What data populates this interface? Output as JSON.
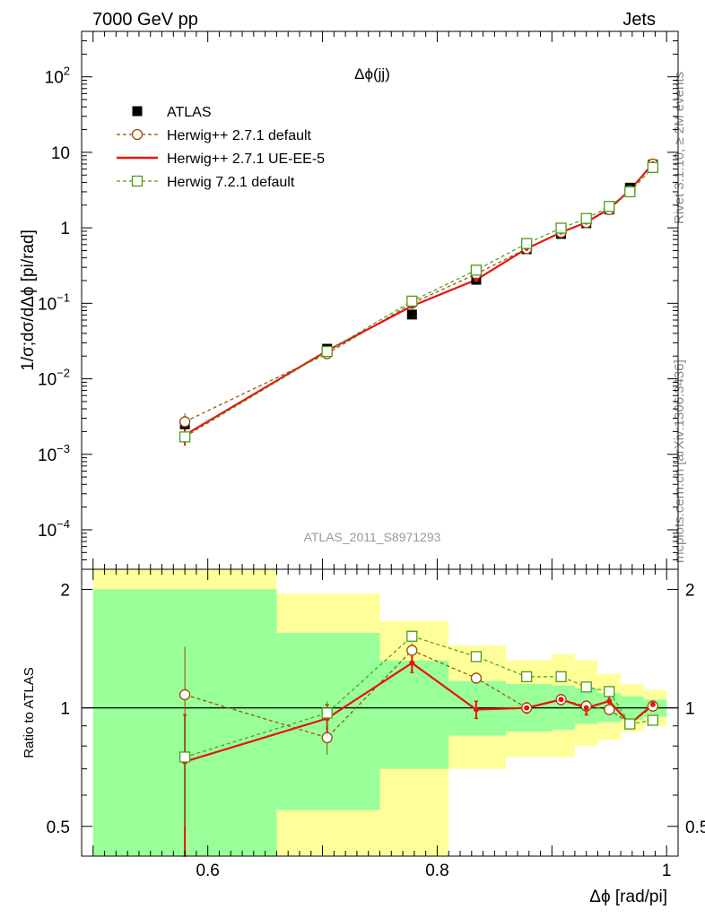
{
  "header": {
    "left": "7000 GeV pp",
    "right": "Jets"
  },
  "side_labels": {
    "rivet": "Rivet 3.1.10, ≥ 2M events",
    "mcplots": "mcplots.cern.ch [arXiv:1306.3436]"
  },
  "chart_data": [
    {
      "type": "line",
      "title": "Δϕ(jj)",
      "ylabel": "1/σ;dσ/dΔϕ [pi/rad]",
      "xlabel": "",
      "log_y": true,
      "ylim": [
        3e-05,
        400
      ],
      "xlim": [
        0.49,
        1.01
      ],
      "y_ticks": [
        {
          "value": 0.0001,
          "base": "10",
          "exp": "−4"
        },
        {
          "value": 0.001,
          "base": "10",
          "exp": "−3"
        },
        {
          "value": 0.01,
          "base": "10",
          "exp": "−2"
        },
        {
          "value": 0.1,
          "base": "10",
          "exp": "−1"
        },
        {
          "value": 1,
          "base": "1",
          "exp": ""
        },
        {
          "value": 10,
          "base": "10",
          "exp": ""
        },
        {
          "value": 100,
          "base": "10",
          "exp": "2"
        }
      ],
      "legend_position": "top-left",
      "watermark": "ATLAS_2011_S8971293",
      "x": [
        0.58,
        0.704,
        0.778,
        0.834,
        0.878,
        0.908,
        0.93,
        0.95,
        0.968,
        0.988
      ],
      "series": [
        {
          "name": "ATLAS",
          "style": "data-points",
          "color": "#000000",
          "values": [
            0.0025,
            0.025,
            0.071,
            0.205,
            0.52,
            0.83,
            1.15,
            1.75,
            3.4,
            6.9
          ],
          "err_up": [
            0.0007,
            0.002,
            0.005,
            0.012,
            0.025,
            0.035,
            0.045,
            0.06,
            0.1,
            0.15
          ],
          "err_down": [
            0.0007,
            0.002,
            0.005,
            0.012,
            0.025,
            0.035,
            0.045,
            0.06,
            0.1,
            0.15
          ]
        },
        {
          "name": "Herwig++ 2.7.1 default",
          "style": "dashed-circle",
          "color": "#9c4a00",
          "values": [
            0.0027,
            0.0215,
            0.1,
            0.245,
            0.53,
            0.87,
            1.17,
            1.74,
            3.1,
            7.0
          ],
          "err_up": [
            0.0008,
            0.002,
            0.004,
            0.012,
            0.025,
            0.03,
            0.04,
            0.05,
            0.08,
            0.15
          ],
          "err_down": [
            0.0008,
            0.002,
            0.004,
            0.012,
            0.025,
            0.03,
            0.04,
            0.05,
            0.08,
            0.15
          ]
        },
        {
          "name": "Herwig++ 2.7.1 UE-EE-5",
          "style": "solid",
          "color": "#e8140f",
          "values": [
            0.0018,
            0.0235,
            0.092,
            0.205,
            0.53,
            0.87,
            1.18,
            1.8,
            3.15,
            7.1
          ],
          "err_up": [
            0.0005,
            0.002,
            0.004,
            0.012,
            0.025,
            0.03,
            0.04,
            0.05,
            0.08,
            0.15
          ],
          "err_down": [
            0.0005,
            0.002,
            0.004,
            0.012,
            0.025,
            0.03,
            0.04,
            0.05,
            0.08,
            0.15
          ]
        },
        {
          "name": "Herwig 7.2.1 default",
          "style": "dashed-square",
          "color": "#4a9c1a",
          "values": [
            0.0017,
            0.023,
            0.107,
            0.275,
            0.62,
            0.99,
            1.33,
            1.92,
            3.0,
            6.3
          ],
          "err_up": [
            0.0003,
            0.002,
            0.004,
            0.012,
            0.025,
            0.03,
            0.04,
            0.05,
            0.08,
            0.15
          ],
          "err_down": [
            0.0003,
            0.002,
            0.004,
            0.012,
            0.025,
            0.03,
            0.04,
            0.05,
            0.08,
            0.15
          ]
        }
      ]
    },
    {
      "type": "line",
      "title": "",
      "ylabel": "Ratio to ATLAS",
      "xlabel": "Δϕ [rad/pi]",
      "log_y": true,
      "ylim": [
        0.42,
        2.25
      ],
      "xlim": [
        0.49,
        1.01
      ],
      "x_ticks": [
        "0.6",
        "0.8",
        "1"
      ],
      "y_ticks": [
        "0.5",
        "1",
        "2"
      ],
      "reference_line": 1,
      "bands": [
        {
          "x0": 0.5,
          "x1": 0.66,
          "green": [
            0.42,
            2.0
          ],
          "yellow": [
            0.42,
            2.25
          ]
        },
        {
          "x0": 0.66,
          "x1": 0.75,
          "green": [
            0.55,
            1.55
          ],
          "yellow": [
            0.42,
            1.95
          ]
        },
        {
          "x0": 0.75,
          "x1": 0.81,
          "green": [
            0.7,
            1.32
          ],
          "yellow": [
            0.42,
            1.66
          ]
        },
        {
          "x0": 0.81,
          "x1": 0.86,
          "green": [
            0.85,
            1.17
          ],
          "yellow": [
            0.7,
            1.44
          ]
        },
        {
          "x0": 0.86,
          "x1": 0.9,
          "green": [
            0.87,
            1.15
          ],
          "yellow": [
            0.75,
            1.32
          ]
        },
        {
          "x0": 0.9,
          "x1": 0.92,
          "green": [
            0.88,
            1.14
          ],
          "yellow": [
            0.75,
            1.37
          ]
        },
        {
          "x0": 0.92,
          "x1": 0.94,
          "green": [
            0.91,
            1.12
          ],
          "yellow": [
            0.8,
            1.32
          ]
        },
        {
          "x0": 0.94,
          "x1": 0.96,
          "green": [
            0.92,
            1.09
          ],
          "yellow": [
            0.83,
            1.22
          ]
        },
        {
          "x0": 0.96,
          "x1": 0.98,
          "green": [
            0.93,
            1.07
          ],
          "yellow": [
            0.87,
            1.15
          ]
        },
        {
          "x0": 0.98,
          "x1": 1.0,
          "green": [
            0.95,
            1.05
          ],
          "yellow": [
            0.9,
            1.11
          ]
        }
      ],
      "series": [
        {
          "name": "Herwig++ 2.7.1 default",
          "color": "#9c4a00",
          "values": [
            1.08,
            0.84,
            1.4,
            1.19,
            1.0,
            1.05,
            1.01,
            0.99,
            0.91,
            1.01
          ],
          "err_up": [
            0.35,
            0.08,
            0.06,
            0.04,
            0.03,
            0.03,
            0.03,
            0.02,
            0.02,
            0.02
          ],
          "err_down": [
            0.35,
            0.08,
            0.06,
            0.04,
            0.03,
            0.03,
            0.03,
            0.02,
            0.02,
            0.02
          ]
        },
        {
          "name": "Herwig++ 2.7.1 UE-EE-5",
          "color": "#e8140f",
          "values": [
            0.73,
            0.94,
            1.3,
            0.99,
            1.0,
            1.05,
            1.0,
            1.04,
            0.91,
            1.02
          ],
          "err_up": [
            0.23,
            0.08,
            0.07,
            0.05,
            0.03,
            0.03,
            0.04,
            0.03,
            0.02,
            0.02
          ],
          "err_down": [
            0.35,
            0.08,
            0.07,
            0.05,
            0.03,
            0.03,
            0.04,
            0.03,
            0.02,
            0.02
          ]
        },
        {
          "name": "Herwig 7.2.1 default",
          "color": "#4a9c1a",
          "values": [
            0.75,
            0.97,
            1.52,
            1.35,
            1.2,
            1.2,
            1.13,
            1.1,
            0.91,
            0.93
          ],
          "err_up": [
            0.2,
            0.07,
            0.05,
            0.04,
            0.02,
            0.02,
            0.02,
            0.02,
            0.02,
            0.02
          ],
          "err_down": [
            0.25,
            0.07,
            0.05,
            0.04,
            0.02,
            0.02,
            0.02,
            0.02,
            0.02,
            0.02
          ]
        }
      ]
    }
  ]
}
